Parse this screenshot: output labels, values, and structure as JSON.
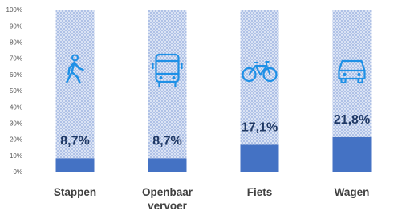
{
  "chart_data": {
    "type": "bar",
    "categories": [
      "Stappen",
      "Openbaar vervoer",
      "Fiets",
      "Wagen"
    ],
    "values": [
      8.7,
      8.7,
      17.1,
      21.8
    ],
    "value_labels": [
      "8,7%",
      "8,7%",
      "17,1%",
      "21,8%"
    ],
    "color": "#4472c4",
    "ylim": [
      0,
      100
    ],
    "yticks": [
      {
        "value": 0,
        "label": "0%"
      },
      {
        "value": 10,
        "label": "10%"
      },
      {
        "value": 20,
        "label": "20%"
      },
      {
        "value": 30,
        "label": "30%"
      },
      {
        "value": 40,
        "label": "40%"
      },
      {
        "value": 50,
        "label": "50%"
      },
      {
        "value": 60,
        "label": "60%"
      },
      {
        "value": 70,
        "label": "70%"
      },
      {
        "value": 80,
        "label": "80%"
      },
      {
        "value": 90,
        "label": "90%"
      },
      {
        "value": 100,
        "label": "100%"
      }
    ],
    "grid": false
  }
}
